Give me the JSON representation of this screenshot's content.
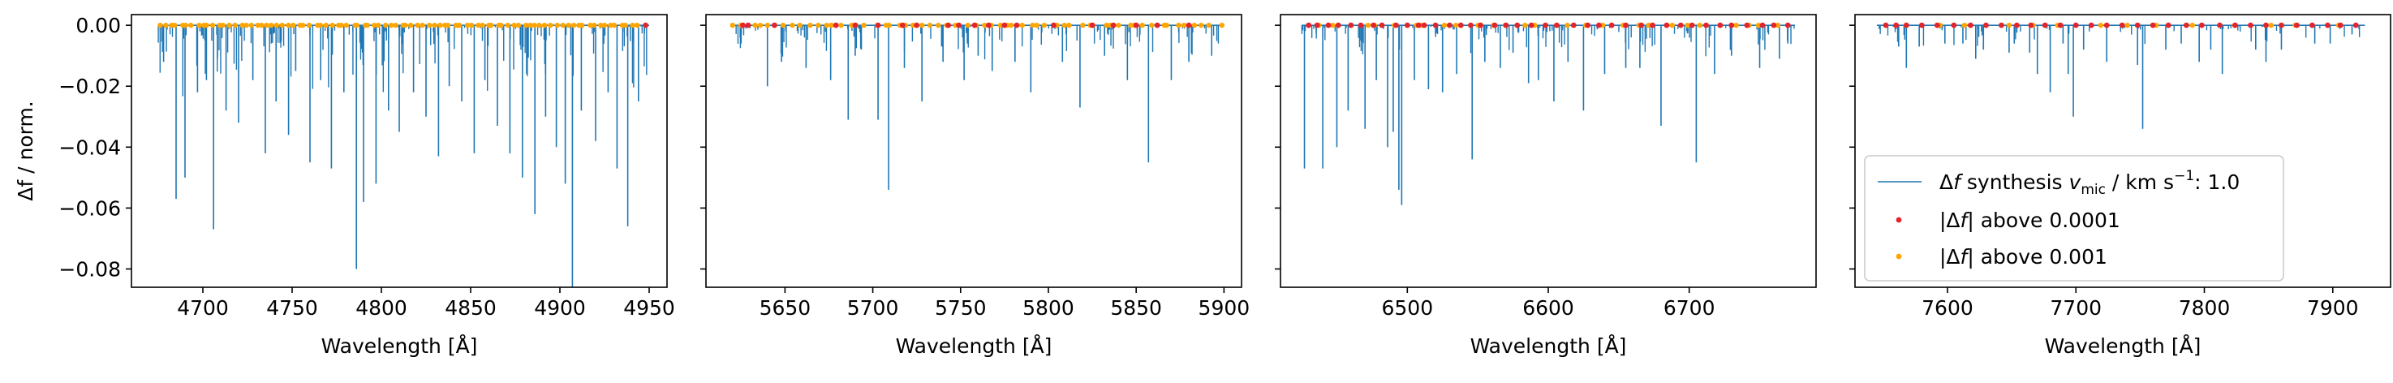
{
  "chart_data": [
    {
      "type": "line",
      "panel": 1,
      "xlabel": "Wavelength [Å]",
      "ylabel": "Δf / norm.",
      "xlim": [
        4660,
        4960
      ],
      "ylim": [
        -0.086,
        0.0035
      ],
      "xticks": [
        4700,
        4750,
        4800,
        4850,
        4900,
        4950
      ],
      "yticks": [
        0.0,
        -0.02,
        -0.04,
        -0.06,
        -0.08
      ],
      "ytick_labels": [
        "0.00",
        "−0.02",
        "−0.04",
        "−0.06",
        "−0.08"
      ],
      "series": [
        {
          "name": "Δf synthesis v_mic / km s⁻¹: 1.0",
          "color": "#1f77b4",
          "x_range": [
            4675,
            4950
          ],
          "lines": [
            [
              4678,
              -0.012
            ],
            [
              4685,
              -0.057
            ],
            [
              4690,
              -0.05
            ],
            [
              4697,
              -0.022
            ],
            [
              4702,
              -0.018
            ],
            [
              4706,
              -0.067
            ],
            [
              4713,
              -0.028
            ],
            [
              4720,
              -0.032
            ],
            [
              4728,
              -0.018
            ],
            [
              4735,
              -0.042
            ],
            [
              4741,
              -0.025
            ],
            [
              4748,
              -0.036
            ],
            [
              4752,
              -0.015
            ],
            [
              4760,
              -0.045
            ],
            [
              4766,
              -0.018
            ],
            [
              4772,
              -0.047
            ],
            [
              4779,
              -0.022
            ],
            [
              4786,
              -0.08
            ],
            [
              4790,
              -0.058
            ],
            [
              4797,
              -0.052
            ],
            [
              4804,
              -0.028
            ],
            [
              4810,
              -0.035
            ],
            [
              4818,
              -0.022
            ],
            [
              4825,
              -0.03
            ],
            [
              4832,
              -0.043
            ],
            [
              4838,
              -0.02
            ],
            [
              4845,
              -0.025
            ],
            [
              4852,
              -0.042
            ],
            [
              4858,
              -0.018
            ],
            [
              4865,
              -0.033
            ],
            [
              4872,
              -0.042
            ],
            [
              4879,
              -0.05
            ],
            [
              4886,
              -0.062
            ],
            [
              4892,
              -0.03
            ],
            [
              4898,
              -0.04
            ],
            [
              4903,
              -0.052
            ],
            [
              4907,
              -0.086
            ],
            [
              4912,
              -0.028
            ],
            [
              4920,
              -0.038
            ],
            [
              4927,
              -0.022
            ],
            [
              4932,
              -0.047
            ],
            [
              4938,
              -0.066
            ],
            [
              4944,
              -0.025
            ]
          ],
          "noise_depth": 0.016,
          "noise_count": 200
        },
        {
          "name": "|Δf| above 0.0001",
          "color": "#e3242b",
          "x": [
            4948
          ],
          "y": [
            0
          ]
        },
        {
          "name": "|Δf| above 0.001",
          "color": "#ffa500",
          "x_range": [
            4675,
            4945
          ],
          "count": 90
        }
      ]
    },
    {
      "type": "line",
      "panel": 2,
      "xlabel": "Wavelength [Å]",
      "xlim": [
        5605,
        5910
      ],
      "ylim": [
        -0.086,
        0.0035
      ],
      "xticks": [
        5650,
        5700,
        5750,
        5800,
        5850,
        5900
      ],
      "series": [
        {
          "name": "Δf synthesis v_mic / km s⁻¹: 1.0",
          "color": "#1f77b4",
          "x_range": [
            5620,
            5900
          ],
          "lines": [
            [
              5625,
              -0.006
            ],
            [
              5640,
              -0.02
            ],
            [
              5648,
              -0.012
            ],
            [
              5662,
              -0.014
            ],
            [
              5676,
              -0.018
            ],
            [
              5686,
              -0.031
            ],
            [
              5690,
              -0.01
            ],
            [
              5703,
              -0.031
            ],
            [
              5709,
              -0.054
            ],
            [
              5718,
              -0.014
            ],
            [
              5728,
              -0.025
            ],
            [
              5740,
              -0.012
            ],
            [
              5752,
              -0.018
            ],
            [
              5760,
              -0.01
            ],
            [
              5768,
              -0.015
            ],
            [
              5781,
              -0.012
            ],
            [
              5790,
              -0.022
            ],
            [
              5808,
              -0.012
            ],
            [
              5818,
              -0.027
            ],
            [
              5832,
              -0.01
            ],
            [
              5845,
              -0.018
            ],
            [
              5857,
              -0.045
            ],
            [
              5870,
              -0.018
            ],
            [
              5880,
              -0.012
            ],
            [
              5893,
              -0.01
            ]
          ],
          "noise_depth": 0.008,
          "noise_count": 140
        },
        {
          "name": "|Δf| above 0.0001",
          "color": "#e3242b",
          "x": [
            5626,
            5629,
            5644,
            5679,
            5690,
            5703,
            5717,
            5725,
            5743,
            5749,
            5758,
            5766,
            5775,
            5782,
            5803,
            5825,
            5837,
            5850,
            5862,
            5880
          ],
          "y": [
            0,
            0,
            0,
            0,
            0,
            0,
            0,
            0,
            0,
            0,
            0,
            0,
            0,
            0,
            0,
            0,
            0,
            0,
            0,
            0
          ]
        },
        {
          "name": "|Δf| above 0.001",
          "color": "#ffa500",
          "x_range": [
            5620,
            5900
          ],
          "count": 60
        }
      ]
    },
    {
      "type": "line",
      "panel": 3,
      "xlabel": "Wavelength [Å]",
      "xlim": [
        6410,
        6790
      ],
      "ylim": [
        -0.086,
        0.0035
      ],
      "xticks": [
        6500,
        6600,
        6700
      ],
      "series": [
        {
          "name": "Δf synthesis v_mic / km s⁻¹: 1.0",
          "color": "#1f77b4",
          "x_range": [
            6425,
            6775
          ],
          "lines": [
            [
              6427,
              -0.047
            ],
            [
              6440,
              -0.047
            ],
            [
              6450,
              -0.04
            ],
            [
              6458,
              -0.028
            ],
            [
              6470,
              -0.034
            ],
            [
              6478,
              -0.018
            ],
            [
              6486,
              -0.04
            ],
            [
              6490,
              -0.035
            ],
            [
              6494,
              -0.054
            ],
            [
              6496,
              -0.059
            ],
            [
              6505,
              -0.018
            ],
            [
              6515,
              -0.021
            ],
            [
              6525,
              -0.022
            ],
            [
              6535,
              -0.016
            ],
            [
              6546,
              -0.044
            ],
            [
              6555,
              -0.012
            ],
            [
              6566,
              -0.014
            ],
            [
              6575,
              -0.009
            ],
            [
              6586,
              -0.019
            ],
            [
              6593,
              -0.018
            ],
            [
              6604,
              -0.025
            ],
            [
              6614,
              -0.012
            ],
            [
              6625,
              -0.028
            ],
            [
              6640,
              -0.016
            ],
            [
              6655,
              -0.014
            ],
            [
              6665,
              -0.014
            ],
            [
              6680,
              -0.033
            ],
            [
              6705,
              -0.045
            ],
            [
              6718,
              -0.016
            ],
            [
              6730,
              -0.01
            ],
            [
              6750,
              -0.014
            ],
            [
              6764,
              -0.011
            ],
            [
              6770,
              -0.006
            ]
          ],
          "noise_depth": 0.008,
          "noise_count": 140
        },
        {
          "name": "|Δf| above 0.0001",
          "color": "#e3242b",
          "x": [
            6430,
            6436,
            6444,
            6451,
            6460,
            6467,
            6476,
            6482,
            6492,
            6500,
            6508,
            6512,
            6520,
            6530,
            6538,
            6545,
            6552,
            6562,
            6570,
            6578,
            6588,
            6598,
            6606,
            6618,
            6628,
            6636,
            6645,
            6655,
            6666,
            6674,
            6684,
            6694,
            6702,
            6712,
            6722,
            6730,
            6741,
            6752,
            6760,
            6770
          ],
          "y": [
            0,
            0,
            0,
            0,
            0,
            0,
            0,
            0,
            0,
            0,
            0,
            0,
            0,
            0,
            0,
            0,
            0,
            0,
            0,
            0,
            0,
            0,
            0,
            0,
            0,
            0,
            0,
            0,
            0,
            0,
            0,
            0,
            0,
            0,
            0,
            0,
            0,
            0,
            0,
            0
          ]
        },
        {
          "name": "|Δf| above 0.001",
          "color": "#ffa500",
          "x_range": [
            6430,
            6770
          ],
          "count": 30
        }
      ]
    },
    {
      "type": "line",
      "panel": 4,
      "xlabel": "Wavelength [Å]",
      "xlim": [
        7528,
        7945
      ],
      "ylim": [
        -0.086,
        0.0035
      ],
      "xticks": [
        7600,
        7700,
        7800,
        7900
      ],
      "series": [
        {
          "name": "Δf synthesis v_mic / km s⁻¹: 1.0",
          "color": "#1f77b4",
          "x_range": [
            7545,
            7925
          ],
          "lines": [
            [
              7562,
              -0.007
            ],
            [
              7568,
              -0.014
            ],
            [
              7578,
              -0.007
            ],
            [
              7598,
              -0.006
            ],
            [
              7612,
              -0.006
            ],
            [
              7622,
              -0.011
            ],
            [
              7628,
              -0.008
            ],
            [
              7648,
              -0.009
            ],
            [
              7652,
              -0.006
            ],
            [
              7664,
              -0.009
            ],
            [
              7670,
              -0.016
            ],
            [
              7680,
              -0.022
            ],
            [
              7690,
              -0.006
            ],
            [
              7694,
              -0.016
            ],
            [
              7698,
              -0.03
            ],
            [
              7706,
              -0.008
            ],
            [
              7724,
              -0.012
            ],
            [
              7748,
              -0.013
            ],
            [
              7752,
              -0.034
            ],
            [
              7770,
              -0.008
            ],
            [
              7782,
              -0.006
            ],
            [
              7796,
              -0.012
            ],
            [
              7805,
              -0.008
            ],
            [
              7814,
              -0.016
            ],
            [
              7840,
              -0.008
            ],
            [
              7848,
              -0.012
            ],
            [
              7860,
              -0.008
            ],
            [
              7886,
              -0.006
            ],
            [
              7898,
              -0.006
            ],
            [
              7915,
              -0.003
            ]
          ],
          "noise_depth": 0.005,
          "noise_count": 90
        },
        {
          "name": "|Δf| above 0.0001",
          "color": "#e3242b",
          "x": [
            7552,
            7560,
            7568,
            7580,
            7592,
            7605,
            7618,
            7630,
            7642,
            7654,
            7665,
            7676,
            7688,
            7700,
            7712,
            7724,
            7736,
            7748,
            7760,
            7772,
            7786,
            7798,
            7812,
            7824,
            7836,
            7848,
            7860,
            7872,
            7884,
            7896,
            7906,
            7918
          ],
          "y": [
            0,
            0,
            0,
            0,
            0,
            0,
            0,
            0,
            0,
            0,
            0,
            0,
            0,
            0,
            0,
            0,
            0,
            0,
            0,
            0,
            0,
            0,
            0,
            0,
            0,
            0,
            0,
            0,
            0,
            0,
            0,
            0
          ]
        },
        {
          "name": "|Δf| above 0.001",
          "color": "#ffa500",
          "x_range": [
            7550,
            7920
          ],
          "count": 14
        }
      ]
    }
  ],
  "legend": {
    "location": "lower-right",
    "entries": [
      {
        "label": "Δf synthesis v_mic / km s⁻¹: 1.0",
        "color": "#1f77b4",
        "marker": "line"
      },
      {
        "label": "|Δf| above 0.0001",
        "color": "#e3242b",
        "marker": "dot"
      },
      {
        "label": "|Δf| above 0.001",
        "color": "#ffa500",
        "marker": "dot"
      }
    ]
  }
}
